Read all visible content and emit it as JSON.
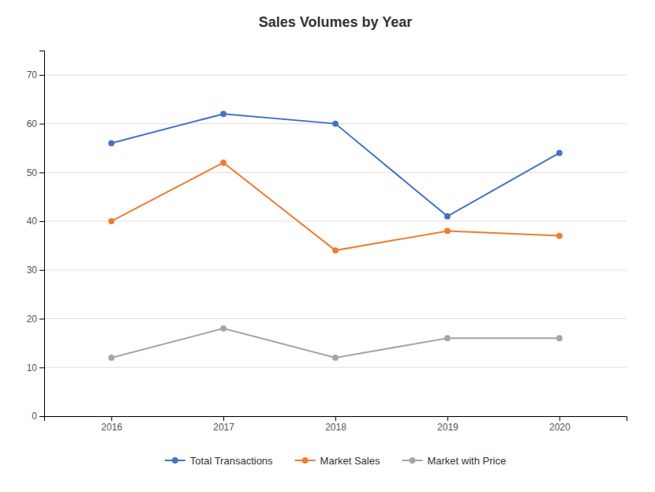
{
  "chart_data": {
    "type": "line",
    "title": "Sales Volumes by Year",
    "x": [
      2016,
      2017,
      2018,
      2019,
      2020
    ],
    "xlim": [
      2015.4,
      2020.6
    ],
    "xticks": [
      2016,
      2017,
      2018,
      2019,
      2020
    ],
    "ylim": [
      0,
      75
    ],
    "yticks": [
      0,
      10,
      20,
      30,
      40,
      50,
      60,
      70
    ],
    "grid": true,
    "legend": "bottom",
    "series": [
      {
        "name": "Total Transactions",
        "color": "#4472C4",
        "marker": "circle",
        "values": [
          56,
          62,
          60,
          41,
          54
        ]
      },
      {
        "name": "Market Sales",
        "color": "#ED7D31",
        "marker": "circle",
        "values": [
          40,
          52,
          34,
          38,
          37
        ]
      },
      {
        "name": "Market with Price",
        "color": "#A5A5A5",
        "marker": "circle",
        "values": [
          12,
          18,
          12,
          16,
          16
        ]
      }
    ]
  }
}
